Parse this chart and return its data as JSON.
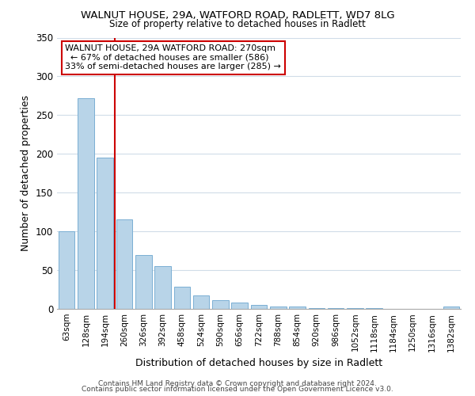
{
  "title": "WALNUT HOUSE, 29A, WATFORD ROAD, RADLETT, WD7 8LG",
  "subtitle": "Size of property relative to detached houses in Radlett",
  "xlabel": "Distribution of detached houses by size in Radlett",
  "ylabel": "Number of detached properties",
  "bar_color": "#b8d4e8",
  "bar_edge_color": "#7bafd4",
  "ref_line_color": "#cc0000",
  "ref_line_index": 3,
  "categories": [
    "63sqm",
    "128sqm",
    "194sqm",
    "260sqm",
    "326sqm",
    "392sqm",
    "458sqm",
    "524sqm",
    "590sqm",
    "656sqm",
    "722sqm",
    "788sqm",
    "854sqm",
    "920sqm",
    "986sqm",
    "1052sqm",
    "1118sqm",
    "1184sqm",
    "1250sqm",
    "1316sqm",
    "1382sqm"
  ],
  "values": [
    100,
    272,
    195,
    115,
    70,
    55,
    29,
    17,
    11,
    8,
    5,
    3,
    3,
    1,
    1,
    1,
    1,
    0,
    0,
    0,
    3
  ],
  "ylim": [
    0,
    350
  ],
  "yticks": [
    0,
    50,
    100,
    150,
    200,
    250,
    300,
    350
  ],
  "annotation_title": "WALNUT HOUSE, 29A WATFORD ROAD: 270sqm",
  "annotation_line1": "← 67% of detached houses are smaller (586)",
  "annotation_line2": "33% of semi-detached houses are larger (285) →",
  "annotation_box_color": "#ffffff",
  "annotation_box_edge": "#cc0000",
  "footer1": "Contains HM Land Registry data © Crown copyright and database right 2024.",
  "footer2": "Contains public sector information licensed under the Open Government Licence v3.0.",
  "bg_color": "#ffffff",
  "grid_color": "#d0dce8"
}
